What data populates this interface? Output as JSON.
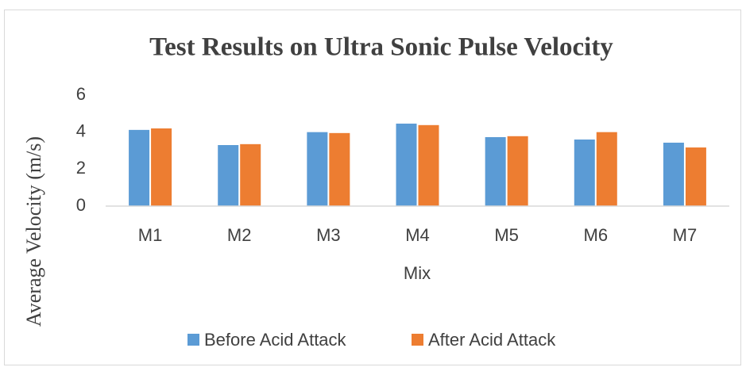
{
  "chart_data": {
    "type": "bar",
    "title": "Test Results on Ultra Sonic Pulse Velocity",
    "x_label": "Mix",
    "y_label": "Average Velocity (m/s)",
    "categories": [
      "M1",
      "M2",
      "M3",
      "M4",
      "M5",
      "M6",
      "M7"
    ],
    "series": [
      {
        "name": "Before Acid Attack",
        "color": "#5b9bd5",
        "values": [
          4.12,
          3.3,
          4.0,
          4.46,
          3.73,
          3.6,
          3.43
        ]
      },
      {
        "name": "After Acid Attack",
        "color": "#ed7d31",
        "values": [
          4.2,
          3.35,
          3.95,
          4.38,
          3.78,
          4.0,
          3.17
        ]
      }
    ],
    "ylim": [
      0,
      6
    ],
    "yticks": [
      0,
      2,
      4,
      6
    ],
    "grid": false,
    "legend": "bottom"
  }
}
